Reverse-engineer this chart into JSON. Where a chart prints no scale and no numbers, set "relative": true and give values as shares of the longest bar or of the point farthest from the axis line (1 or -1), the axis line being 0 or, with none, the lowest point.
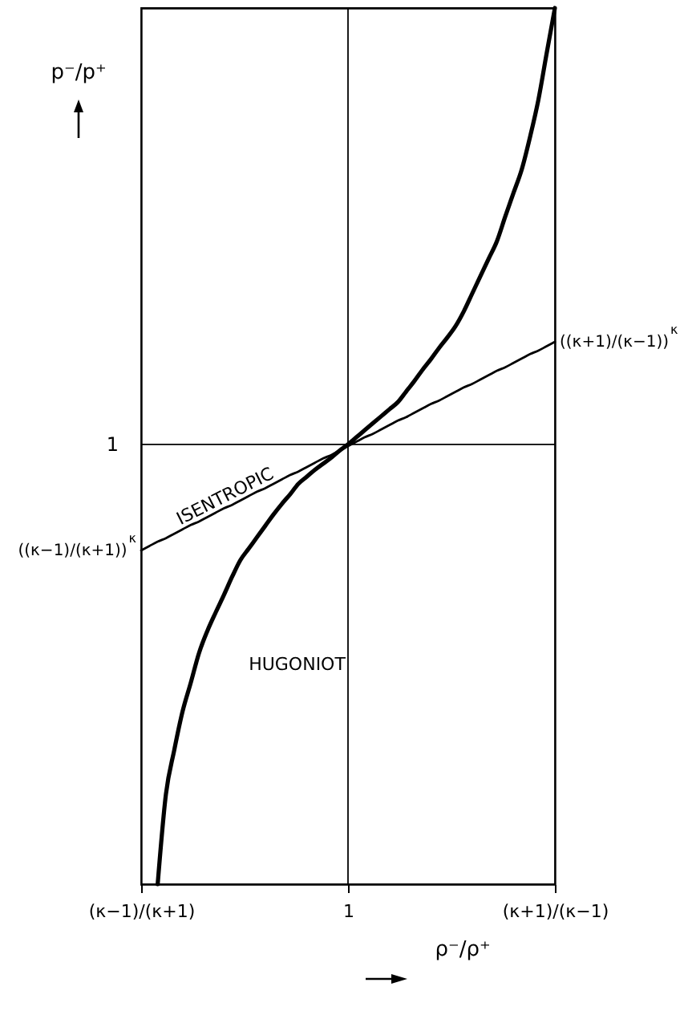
{
  "chart_data": {
    "type": "line",
    "relative": true,
    "xlabel": "ρ⁻/ρ⁺",
    "ylabel": "p⁻/p⁺",
    "categories": [
      "(κ−1)/(κ+1)",
      null,
      null,
      null,
      null,
      null,
      null,
      null,
      null,
      null,
      null,
      null,
      null,
      null,
      null,
      null,
      null,
      null,
      null,
      null,
      null,
      null,
      null,
      null,
      null,
      "1",
      null,
      null,
      null,
      null,
      null,
      null,
      null,
      null,
      null,
      null,
      null,
      null,
      null,
      null,
      null,
      null,
      null,
      null,
      null,
      null,
      null,
      null,
      null,
      null,
      "(κ+1)/(κ−1)"
    ],
    "series": [
      {
        "name": "HUGONIOT",
        "color": "#000000",
        "values": [
          null,
          null,
          0,
          0.103,
          0.153,
          0.197,
          0.23,
          0.264,
          0.289,
          0.31,
          0.33,
          0.351,
          0.37,
          0.383,
          0.396,
          0.409,
          0.422,
          0.434,
          0.445,
          0.457,
          0.465,
          0.473,
          0.48,
          0.487,
          0.495,
          0.502,
          0.51,
          0.518,
          0.526,
          0.534,
          0.542,
          0.55,
          0.562,
          0.574,
          0.587,
          0.599,
          0.612,
          0.624,
          0.637,
          0.654,
          0.674,
          0.694,
          0.714,
          0.734,
          0.762,
          0.789,
          0.816,
          0.853,
          0.895,
          0.948,
          1
        ]
      },
      {
        "name": "ISENTROPIC",
        "color": "#000000",
        "values": [
          0.381,
          0.386,
          0.391,
          0.395,
          0.4,
          0.405,
          0.41,
          0.414,
          0.419,
          0.424,
          0.429,
          0.433,
          0.438,
          0.443,
          0.448,
          0.452,
          0.457,
          0.462,
          0.467,
          0.471,
          0.476,
          0.481,
          0.486,
          0.49,
          0.495,
          0.5,
          0.505,
          0.51,
          0.514,
          0.519,
          0.524,
          0.529,
          0.533,
          0.538,
          0.543,
          0.548,
          0.552,
          0.557,
          0.562,
          0.567,
          0.571,
          0.576,
          0.581,
          0.586,
          0.59,
          0.595,
          0.6,
          0.605,
          0.609,
          0.614,
          0.619
        ]
      }
    ],
    "ref_lines": [
      {
        "axis": "y",
        "value": 0.502,
        "label": "1"
      },
      {
        "axis": "x",
        "value": "1"
      }
    ],
    "annotations": [
      {
        "text": "((κ−1)/(κ+1))$^{κ}$",
        "x": "(κ−1)/(κ+1)",
        "y": 0.381
      },
      {
        "text": "((κ+1)/(κ−1))$^{κ}$",
        "x": "(κ+1)/(κ−1)",
        "y": 0.619
      }
    ],
    "grid": false,
    "marker": "none",
    "line_style": "solid"
  }
}
